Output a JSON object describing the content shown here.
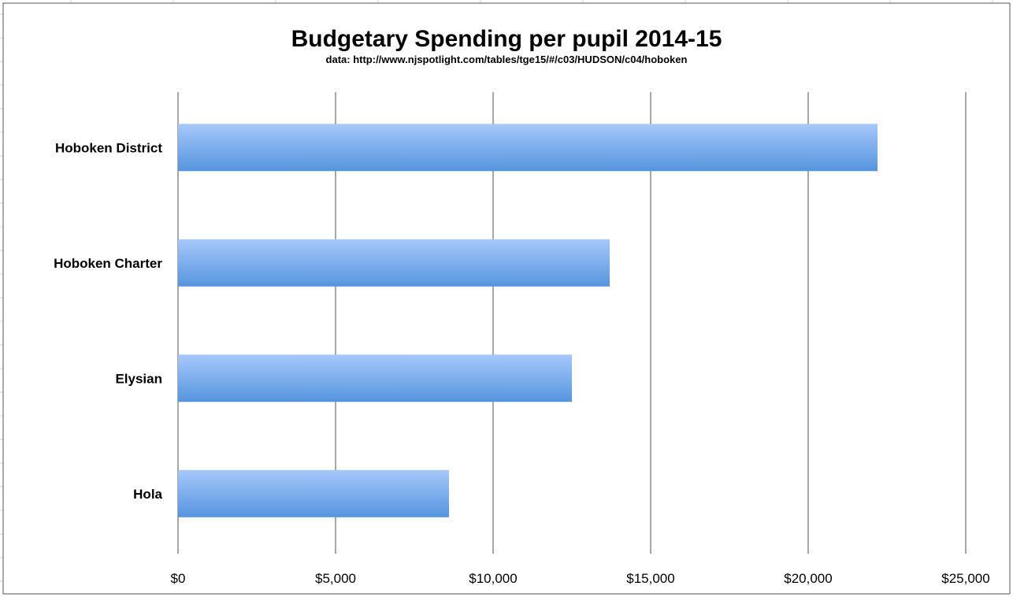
{
  "chart_data": {
    "type": "bar",
    "orientation": "horizontal",
    "title": "Budgetary Spending per pupil 2014-15",
    "subtitle": "data: http://www.njspotlight.com/tables/tge15/#/c03/HUDSON/c04/hoboken",
    "xlabel": "",
    "ylabel": "",
    "categories": [
      "Hoboken District",
      "Hoboken Charter",
      "Elysian",
      "Hola"
    ],
    "values": [
      22200,
      13700,
      12500,
      8600
    ],
    "xlim": [
      0,
      25000
    ],
    "ticks": [
      0,
      5000,
      10000,
      15000,
      20000,
      25000
    ],
    "tick_labels": [
      "$0",
      "$5,000",
      "$10,000",
      "$15,000",
      "$20,000",
      "$25,000"
    ],
    "grid": true,
    "legend": "none",
    "colors": {
      "bar_light": "#a7c8fb",
      "bar_dark": "#5595de",
      "gridline": "#8a8a8a",
      "background_grid": "#d4d4d4"
    }
  }
}
